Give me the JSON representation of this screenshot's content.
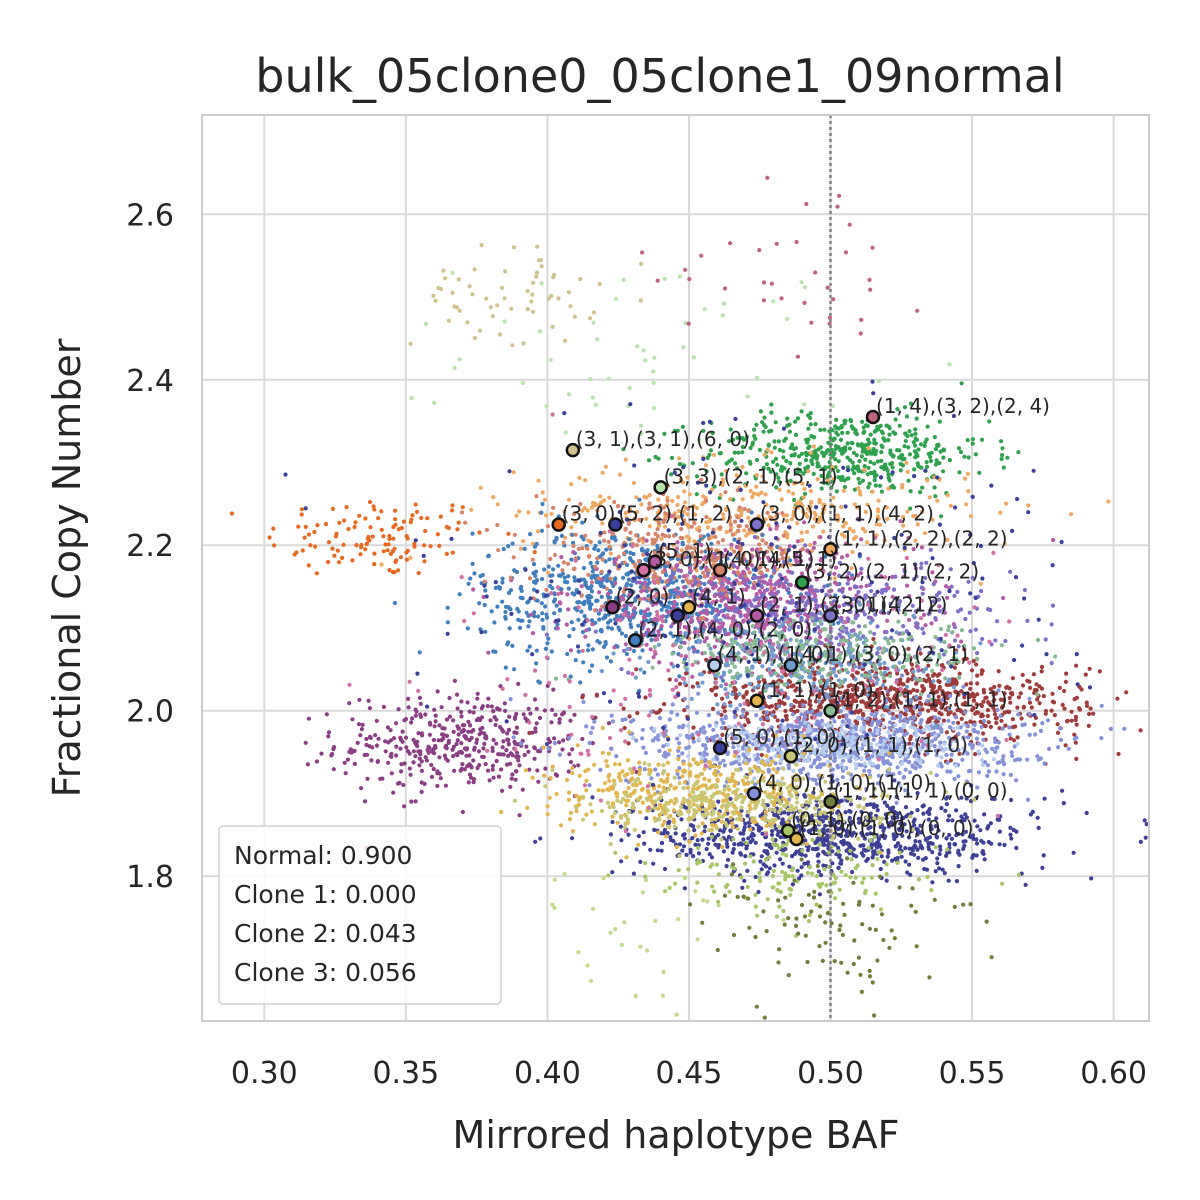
{
  "chart_data": {
    "type": "scatter",
    "title": "bulk_05clone0_05clone1_09normal",
    "xlabel": "Mirrored haplotype BAF",
    "ylabel": "Fractional Copy Number",
    "xlim": [
      0.278,
      0.6125
    ],
    "ylim": [
      1.625,
      2.72
    ],
    "xticks": [
      0.3,
      0.35,
      0.4,
      0.45,
      0.5,
      0.55,
      0.6
    ],
    "xtick_labels": [
      "0.30",
      "0.35",
      "0.40",
      "0.45",
      "0.50",
      "0.55",
      "0.60"
    ],
    "yticks": [
      1.8,
      2.0,
      2.2,
      2.4,
      2.6
    ],
    "ytick_labels": [
      "1.8",
      "2.0",
      "2.2",
      "2.4",
      "2.6"
    ],
    "grid": true,
    "reference_line_x": 0.5,
    "legend": {
      "placement": "lower-left",
      "lines": [
        "Normal: 0.900",
        "Clone 1: 0.000",
        "Clone 2: 0.043",
        "Clone 3: 0.056"
      ]
    },
    "clusters": [
      {
        "cx": 0.34,
        "cy": 2.21,
        "sx": 0.02,
        "sy": 0.025,
        "n": 120,
        "color": "#e8681f"
      },
      {
        "cx": 0.37,
        "cy": 1.96,
        "sx": 0.022,
        "sy": 0.03,
        "n": 420,
        "color": "#8c3e85"
      },
      {
        "cx": 0.385,
        "cy": 2.5,
        "sx": 0.016,
        "sy": 0.03,
        "n": 60,
        "color": "#cfc18c"
      },
      {
        "cx": 0.44,
        "cy": 2.43,
        "sx": 0.035,
        "sy": 0.06,
        "n": 55,
        "color": "#b7e3ad"
      },
      {
        "cx": 0.505,
        "cy": 2.31,
        "sx": 0.025,
        "sy": 0.025,
        "n": 480,
        "color": "#2ea14d"
      },
      {
        "cx": 0.49,
        "cy": 2.55,
        "sx": 0.025,
        "sy": 0.06,
        "n": 35,
        "color": "#c1627d"
      },
      {
        "cx": 0.47,
        "cy": 2.24,
        "sx": 0.04,
        "sy": 0.03,
        "n": 380,
        "color": "#f0a860"
      },
      {
        "cx": 0.43,
        "cy": 2.14,
        "sx": 0.028,
        "sy": 0.04,
        "n": 700,
        "color": "#3f7fbf"
      },
      {
        "cx": 0.47,
        "cy": 2.13,
        "sx": 0.03,
        "sy": 0.035,
        "n": 650,
        "color": "#b65aa7"
      },
      {
        "cx": 0.445,
        "cy": 2.19,
        "sx": 0.025,
        "sy": 0.03,
        "n": 300,
        "color": "#d7836a"
      },
      {
        "cx": 0.5,
        "cy": 2.12,
        "sx": 0.03,
        "sy": 0.03,
        "n": 350,
        "color": "#7e6fc9"
      },
      {
        "cx": 0.52,
        "cy": 2.01,
        "sx": 0.035,
        "sy": 0.025,
        "n": 900,
        "color": "#a13b3b"
      },
      {
        "cx": 0.5,
        "cy": 1.96,
        "sx": 0.035,
        "sy": 0.025,
        "n": 850,
        "color": "#8591d9"
      },
      {
        "cx": 0.5,
        "cy": 1.96,
        "sx": 0.025,
        "sy": 0.015,
        "n": 300,
        "color": "#b6cdee"
      },
      {
        "cx": 0.5,
        "cy": 1.85,
        "sx": 0.035,
        "sy": 0.025,
        "n": 800,
        "color": "#3e3f96"
      },
      {
        "cx": 0.45,
        "cy": 1.9,
        "sx": 0.025,
        "sy": 0.025,
        "n": 380,
        "color": "#e3b54d"
      },
      {
        "cx": 0.47,
        "cy": 1.89,
        "sx": 0.025,
        "sy": 0.02,
        "n": 300,
        "color": "#c7c776"
      },
      {
        "cx": 0.49,
        "cy": 2.06,
        "sx": 0.025,
        "sy": 0.025,
        "n": 300,
        "color": "#6f9ccf"
      },
      {
        "cx": 0.5,
        "cy": 2.07,
        "sx": 0.03,
        "sy": 0.02,
        "n": 250,
        "color": "#86ba93"
      },
      {
        "cx": 0.49,
        "cy": 1.8,
        "sx": 0.025,
        "sy": 0.025,
        "n": 140,
        "color": "#a6c565"
      },
      {
        "cx": 0.5,
        "cy": 1.74,
        "sx": 0.025,
        "sy": 0.045,
        "n": 90,
        "color": "#6f7f3a"
      },
      {
        "cx": 0.43,
        "cy": 1.75,
        "sx": 0.02,
        "sy": 0.04,
        "n": 30,
        "color": "#c2d98a"
      },
      {
        "cx": 0.47,
        "cy": 2.15,
        "sx": 0.06,
        "sy": 0.1,
        "n": 200,
        "color": "#3b3f9c"
      },
      {
        "cx": 0.46,
        "cy": 2.05,
        "sx": 0.05,
        "sy": 0.08,
        "n": 180,
        "color": "#d46fa3"
      }
    ],
    "centroids": [
      {
        "x": 0.515,
        "y": 2.355,
        "color": "#c1627d",
        "label": "(1, 4),(3, 2),(2, 4)"
      },
      {
        "x": 0.409,
        "y": 2.315,
        "color": "#cfc18c",
        "label": "(3, 1),(3, 1),(6, 0)"
      },
      {
        "x": 0.44,
        "y": 2.27,
        "color": "#b7e3ad",
        "label": "(3, 3),(2, 1),(5, 1)"
      },
      {
        "x": 0.404,
        "y": 2.225,
        "color": "#e8681f",
        "label": "(3, 0)"
      },
      {
        "x": 0.424,
        "y": 2.225,
        "color": "#3b3f9c",
        "label": "(5, 2),(1, 2)"
      },
      {
        "x": 0.474,
        "y": 2.225,
        "color": "#7e6fc9",
        "label": "(3, 0),(1, 1),(4, 2)"
      },
      {
        "x": 0.5,
        "y": 2.195,
        "color": "#f0a860",
        "label": "(1, 1),(2, 2),(2, 2)"
      },
      {
        "x": 0.438,
        "y": 2.18,
        "color": "#b65aa7",
        "label": "(5, 1)"
      },
      {
        "x": 0.461,
        "y": 2.17,
        "color": "#d7836a",
        "label": "(4, 1),(5, 1)"
      },
      {
        "x": 0.434,
        "y": 2.17,
        "color": "#d46fa3",
        "label": "(3, 0),(1, 0)(4, 1)"
      },
      {
        "x": 0.49,
        "y": 2.155,
        "color": "#2ea14d",
        "label": "(3, 2),(2, 1),(2, 2)"
      },
      {
        "x": 0.423,
        "y": 2.125,
        "color": "#8c3e85",
        "label": "(2, 0)"
      },
      {
        "x": 0.45,
        "y": 2.125,
        "color": "#e3b54d",
        "label": "(4, 1)"
      },
      {
        "x": 0.474,
        "y": 2.115,
        "color": "#b65aa7",
        "label": "(2, 1),(2, 0),(4, 1)"
      },
      {
        "x": 0.5,
        "y": 2.115,
        "color": "#7e6fc9",
        "label": "(3, 1),(2, 2)"
      },
      {
        "x": 0.446,
        "y": 2.115,
        "color": "#3b3f9c",
        "label": ""
      },
      {
        "x": 0.431,
        "y": 2.085,
        "color": "#3f7fbf",
        "label": "(2, 1),(4, 0),(2, 0)"
      },
      {
        "x": 0.459,
        "y": 2.055,
        "color": "#b6cdee",
        "label": "(4, 1),(1, 0)"
      },
      {
        "x": 0.486,
        "y": 2.055,
        "color": "#6f9ccf",
        "label": "(4, 1),(3, 0),(2, 1)"
      },
      {
        "x": 0.474,
        "y": 2.012,
        "color": "#e3b54d",
        "label": "(1, 1),(1, 0)"
      },
      {
        "x": 0.5,
        "y": 2.0,
        "color": "#86ba93",
        "label": "(1, 2),(1, 1),(1, 1)"
      },
      {
        "x": 0.461,
        "y": 1.955,
        "color": "#3b3f9c",
        "label": "(5, 0),(1, 0)"
      },
      {
        "x": 0.486,
        "y": 1.945,
        "color": "#c7c776",
        "label": "(2, 0),(1, 1),(1, 0)"
      },
      {
        "x": 0.473,
        "y": 1.9,
        "color": "#8591d9",
        "label": "(4, 0),(1, 0),(1, 0)"
      },
      {
        "x": 0.5,
        "y": 1.89,
        "color": "#6f7f3a",
        "label": "(1, 1),(1, 1),(0, 0)"
      },
      {
        "x": 0.485,
        "y": 1.855,
        "color": "#a6c565",
        "label": "(0, 1),(0, 0)"
      },
      {
        "x": 0.488,
        "y": 1.845,
        "color": "#e3b54d",
        "label": "(1, 0),(1, 0),(0, 0)"
      }
    ]
  }
}
